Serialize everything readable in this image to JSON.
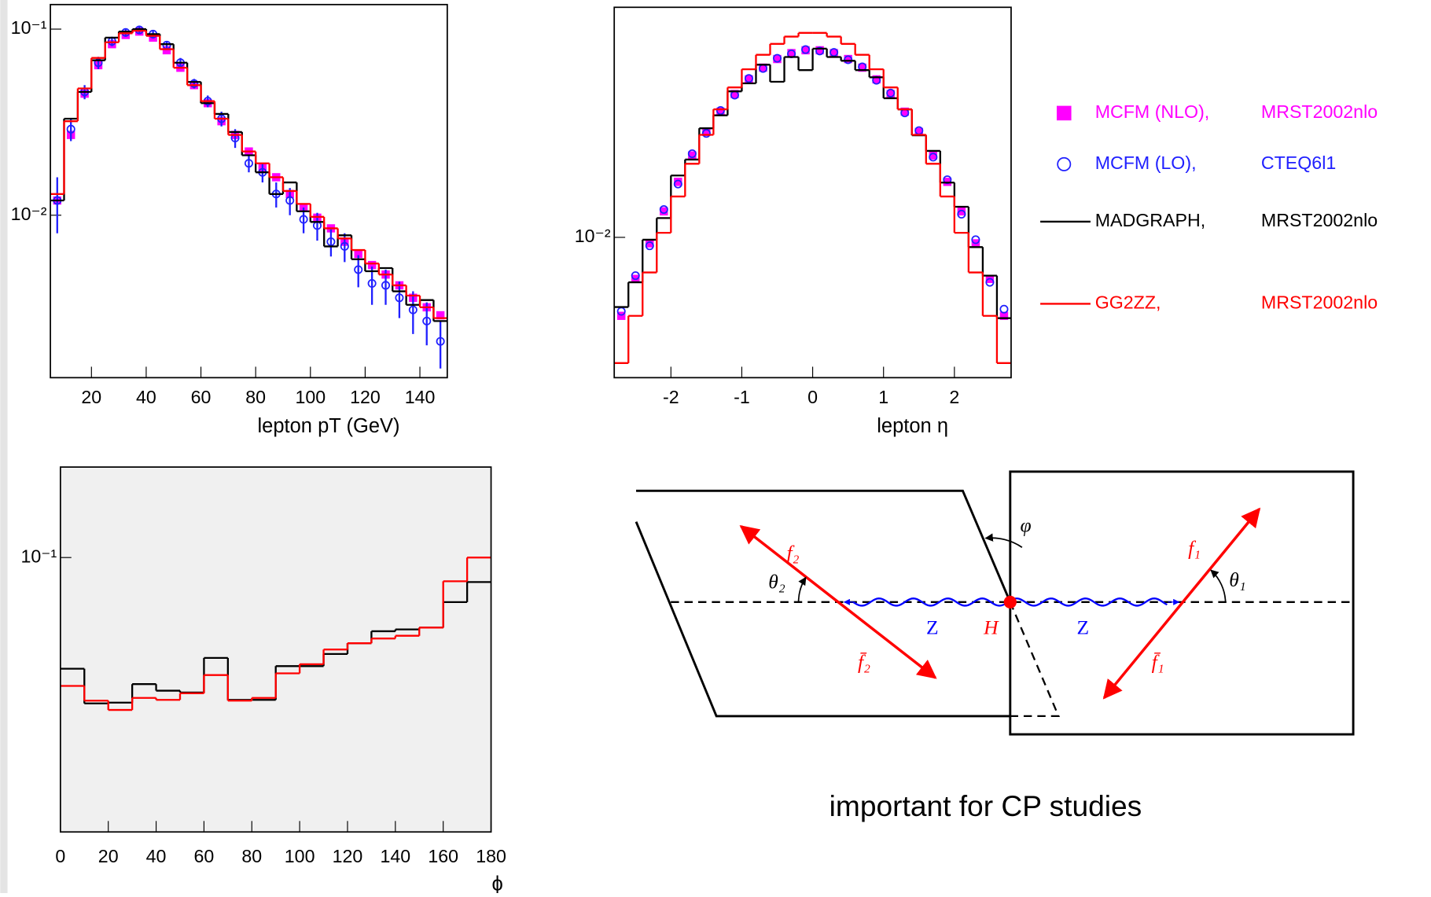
{
  "chart_data": [
    {
      "type": "histogram",
      "xlabel": "lepton pT (GeV)",
      "log_y": true,
      "bins": [
        5,
        10,
        15,
        20,
        25,
        30,
        35,
        40,
        45,
        50,
        55,
        60,
        65,
        70,
        75,
        80,
        85,
        90,
        95,
        100,
        105,
        110,
        115,
        120,
        125,
        130,
        135,
        140,
        145,
        150
      ],
      "xlim": [
        5,
        150
      ],
      "xticks": [
        20,
        40,
        60,
        80,
        100,
        120,
        140
      ],
      "ylim": [
        0.00134,
        0.1355
      ],
      "yticks": [
        {
          "value": 0.1,
          "label": "10⁻¹"
        },
        {
          "value": 0.01,
          "label": "10⁻²"
        }
      ],
      "series": [
        {
          "name": "MCFM (NLO),",
          "pdf": "MRST2002nlo",
          "color": "#ff00ff",
          "style": "square",
          "values": [
            0.012,
            0.027,
            0.045,
            0.064,
            0.083,
            0.093,
            0.097,
            0.09,
            0.077,
            0.062,
            0.05,
            0.04,
            0.032,
            0.027,
            0.022,
            0.018,
            0.016,
            0.013,
            0.011,
            0.0097,
            0.0085,
            0.0072,
            0.0062,
            0.0054,
            0.0048,
            0.0042,
            0.0036,
            0.0032,
            0.0029
          ]
        },
        {
          "name": "MCFM (LO),",
          "pdf": "CTEQ6l1",
          "color": "#2020ff",
          "style": "circle",
          "values": [
            0.012,
            0.029,
            0.046,
            0.066,
            0.086,
            0.096,
            0.099,
            0.094,
            0.082,
            0.066,
            0.051,
            0.041,
            0.033,
            0.026,
            0.019,
            0.017,
            0.013,
            0.012,
            0.0095,
            0.0088,
            0.0072,
            0.0068,
            0.0051,
            0.0043,
            0.0042,
            0.0036,
            0.0031,
            0.0027,
            0.0021
          ],
          "errors": [
            0.004,
            0.004,
            0.004,
            0.005,
            0.005,
            0.005,
            0.005,
            0.005,
            0.004,
            0.004,
            0.003,
            0.003,
            0.003,
            0.003,
            0.002,
            0.002,
            0.002,
            0.002,
            0.0015,
            0.0015,
            0.0012,
            0.0012,
            0.001,
            0.001,
            0.0009,
            0.0008,
            0.0008,
            0.0007,
            0.0006
          ]
        },
        {
          "name": "MADGRAPH,",
          "pdf": "MRST2002nlo",
          "color": "#000000",
          "style": "step",
          "values": [
            0.012,
            0.033,
            0.046,
            0.068,
            0.09,
            0.097,
            0.1,
            0.094,
            0.083,
            0.066,
            0.052,
            0.04,
            0.035,
            0.028,
            0.021,
            0.017,
            0.013,
            0.015,
            0.0105,
            0.0092,
            0.0068,
            0.0078,
            0.0058,
            0.005,
            0.0052,
            0.0039,
            0.0033,
            0.0035,
            0.0027
          ]
        },
        {
          "name": "GG2ZZ,",
          "pdf": "MRST2002nlo",
          "color": "#ff0000",
          "style": "step",
          "values": [
            0.013,
            0.032,
            0.048,
            0.07,
            0.085,
            0.095,
            0.098,
            0.092,
            0.078,
            0.062,
            0.05,
            0.041,
            0.033,
            0.027,
            0.022,
            0.019,
            0.016,
            0.0135,
            0.0115,
            0.0098,
            0.0085,
            0.0075,
            0.0065,
            0.0055,
            0.0048,
            0.0042,
            0.0037,
            0.0032,
            0.0028
          ]
        }
      ]
    },
    {
      "type": "histogram",
      "xlabel": "lepton η",
      "log_y": true,
      "bins": [
        -2.8,
        -2.6,
        -2.4,
        -2.2,
        -2.0,
        -1.8,
        -1.6,
        -1.4,
        -1.2,
        -1.0,
        -0.8,
        -0.6,
        -0.4,
        -0.2,
        0,
        0.2,
        0.4,
        0.6,
        0.8,
        1.0,
        1.2,
        1.4,
        1.6,
        1.8,
        2.0,
        2.2,
        2.4,
        2.6,
        2.8
      ],
      "xlim": [
        -2.8,
        2.8
      ],
      "xticks": [
        -2,
        -1,
        0,
        1,
        2
      ],
      "ylim": [
        0.003,
        0.072
      ],
      "yticks": [
        {
          "value": 0.01,
          "label": "10⁻²"
        }
      ],
      "series": [
        {
          "color": "#ff00ff",
          "style": "square",
          "values": [
            0.0051,
            0.007,
            0.0095,
            0.0125,
            0.0161,
            0.0202,
            0.0247,
            0.0294,
            0.0342,
            0.0388,
            0.0429,
            0.0462,
            0.0486,
            0.0498,
            0.0498,
            0.0486,
            0.0462,
            0.0429,
            0.0388,
            0.0342,
            0.0294,
            0.0247,
            0.0202,
            0.0161,
            0.0125,
            0.0095,
            0.007,
            0.0051
          ]
        },
        {
          "color": "#2020ff",
          "style": "circle",
          "values": [
            0.0053,
            0.0072,
            0.0093,
            0.0127,
            0.0158,
            0.0205,
            0.0244,
            0.0297,
            0.0339,
            0.0391,
            0.0426,
            0.0465,
            0.0483,
            0.0501,
            0.0495,
            0.0489,
            0.0459,
            0.0432,
            0.0385,
            0.0345,
            0.0291,
            0.025,
            0.0199,
            0.0164,
            0.0122,
            0.0098,
            0.0068,
            0.0054
          ]
        },
        {
          "color": "#000000",
          "style": "step",
          "values": [
            0.0055,
            0.0068,
            0.0098,
            0.0118,
            0.017,
            0.0195,
            0.0255,
            0.0285,
            0.035,
            0.0375,
            0.044,
            0.038,
            0.047,
            0.042,
            0.0505,
            0.047,
            0.0455,
            0.042,
            0.0395,
            0.033,
            0.03,
            0.024,
            0.021,
            0.016,
            0.013,
            0.0092,
            0.0072,
            0.005
          ]
        },
        {
          "color": "#ff0000",
          "style": "step",
          "values": [
            0.0034,
            0.0051,
            0.0074,
            0.0104,
            0.0142,
            0.0188,
            0.0241,
            0.03,
            0.0362,
            0.0423,
            0.0479,
            0.0526,
            0.056,
            0.0578,
            0.0578,
            0.056,
            0.0526,
            0.0479,
            0.0423,
            0.0362,
            0.03,
            0.0241,
            0.0188,
            0.0142,
            0.0104,
            0.0074,
            0.0051,
            0.0034
          ]
        }
      ]
    },
    {
      "type": "histogram",
      "xlabel": "ϕ",
      "log_y": true,
      "background": "#f0f0f0",
      "bins": [
        0,
        10,
        20,
        30,
        40,
        50,
        60,
        70,
        80,
        90,
        100,
        110,
        120,
        130,
        140,
        150,
        160,
        170,
        180
      ],
      "xlim": [
        0,
        180
      ],
      "xticks": [
        0,
        20,
        40,
        60,
        80,
        100,
        120,
        140,
        160,
        180
      ],
      "ylim": [
        0.02,
        0.17
      ],
      "yticks": [
        {
          "value": 0.1,
          "label": "10⁻¹"
        }
      ],
      "series": [
        {
          "color": "#000000",
          "style": "step",
          "values": [
            0.0521,
            0.0425,
            0.0427,
            0.0476,
            0.0458,
            0.0453,
            0.0555,
            0.0434,
            0.0434,
            0.0529,
            0.0529,
            0.0568,
            0.0605,
            0.0649,
            0.0656,
            0.0663,
            0.077,
            0.0866
          ]
        },
        {
          "color": "#ff0000",
          "style": "step",
          "values": [
            0.0471,
            0.0432,
            0.0409,
            0.0439,
            0.0434,
            0.0451,
            0.0502,
            0.0432,
            0.0439,
            0.0507,
            0.0535,
            0.0583,
            0.0605,
            0.0622,
            0.0632,
            0.0663,
            0.087,
            0.1
          ]
        }
      ]
    }
  ],
  "diagram": {
    "labels": {
      "f2": "f₂",
      "theta2": "θ₂",
      "phi": "φ",
      "f1": "f₁",
      "theta1": "θ₁",
      "z_left": "Z",
      "h": "H",
      "z_right": "Z",
      "f2bar": "f̄₂",
      "f1bar": "f̄₁"
    },
    "caption": "important for CP studies"
  }
}
